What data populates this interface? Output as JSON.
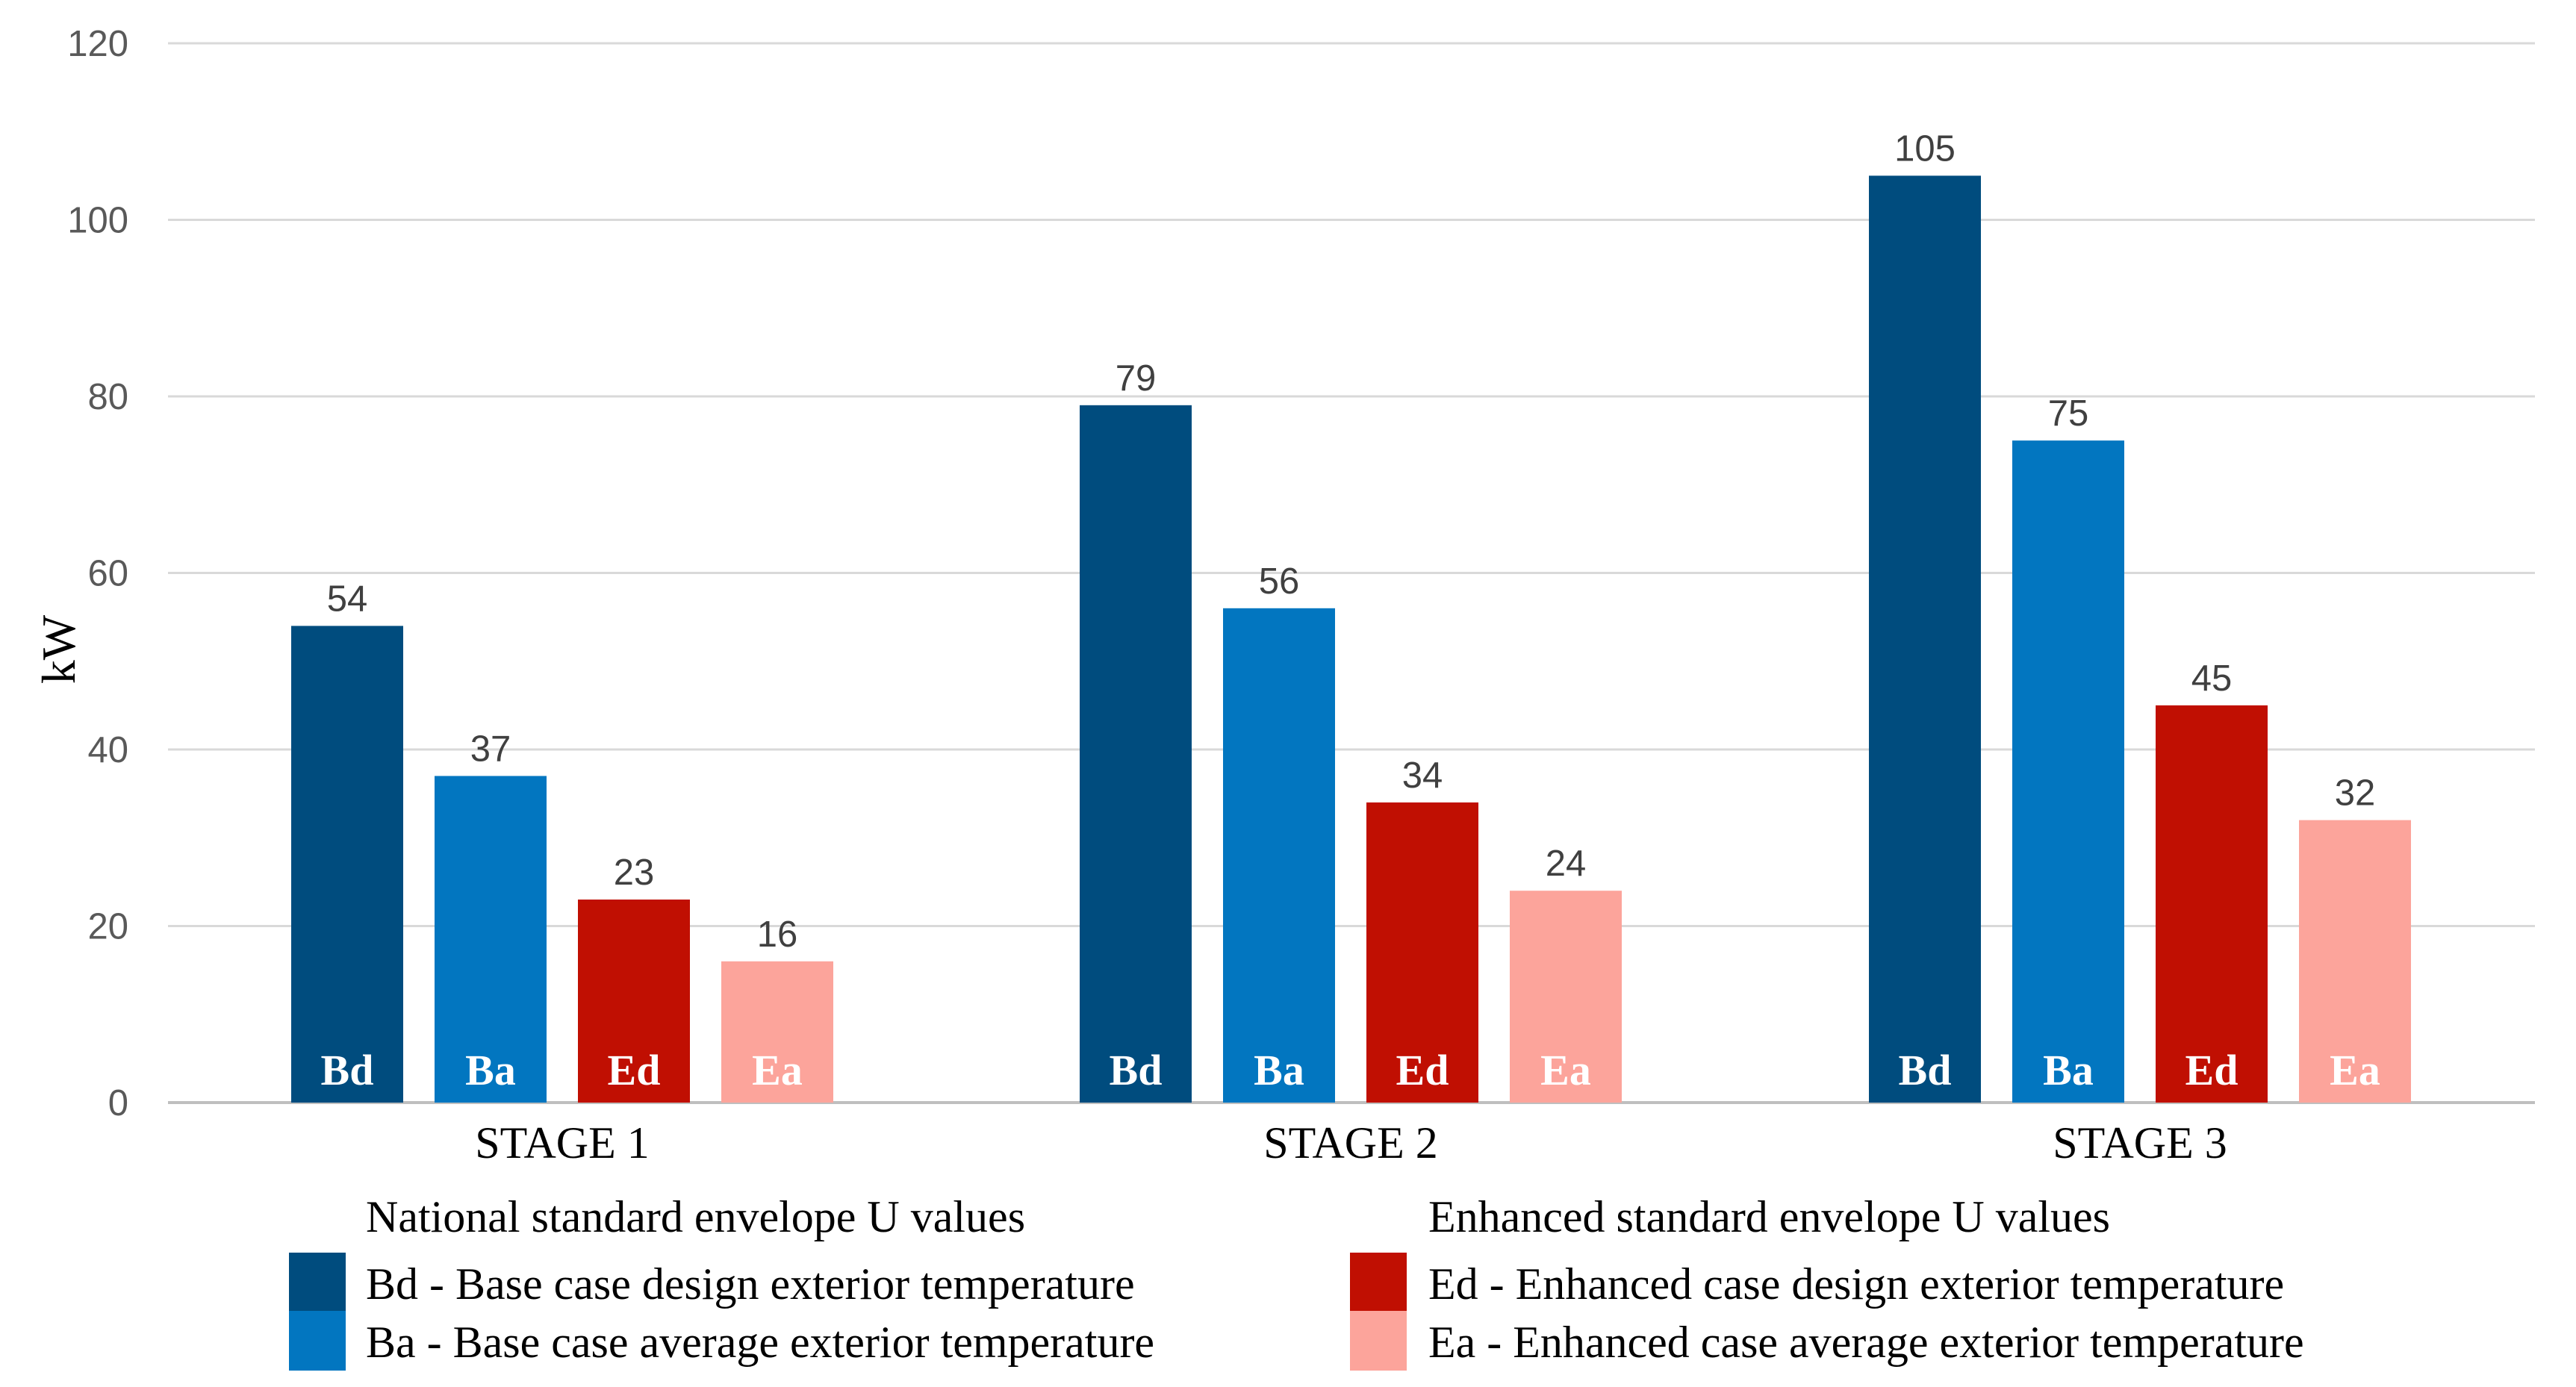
{
  "chart_data": {
    "type": "bar",
    "title": "",
    "xlabel": "",
    "ylabel": "kW",
    "ylim": [
      0,
      120
    ],
    "yticks": [
      0,
      20,
      40,
      60,
      80,
      100,
      120
    ],
    "grid": true,
    "categories": [
      "STAGE 1",
      "STAGE 2",
      "STAGE 3"
    ],
    "series": [
      {
        "code": "Bd",
        "name": "Bd - Base case design exterior temperature",
        "color": "#004C7E",
        "values": [
          54,
          79,
          105
        ]
      },
      {
        "code": "Ba",
        "name": "Ba - Base case average exterior temperature",
        "color": "#0276C0",
        "values": [
          37,
          56,
          75
        ]
      },
      {
        "code": "Ed",
        "name": "Ed - Enhanced case design exterior temperature",
        "color": "#C00F02",
        "values": [
          23,
          34,
          45
        ]
      },
      {
        "code": "Ea",
        "name": "Ea - Enhanced case average exterior temperature",
        "color": "#FCA49B",
        "values": [
          16,
          24,
          32
        ]
      }
    ],
    "legend_groups": [
      {
        "heading": "National standard envelope U values",
        "series": [
          "Bd",
          "Ba"
        ]
      },
      {
        "heading": "Enhanced standard envelope U values",
        "series": [
          "Ed",
          "Ea"
        ]
      }
    ],
    "legend_position": "bottom"
  }
}
